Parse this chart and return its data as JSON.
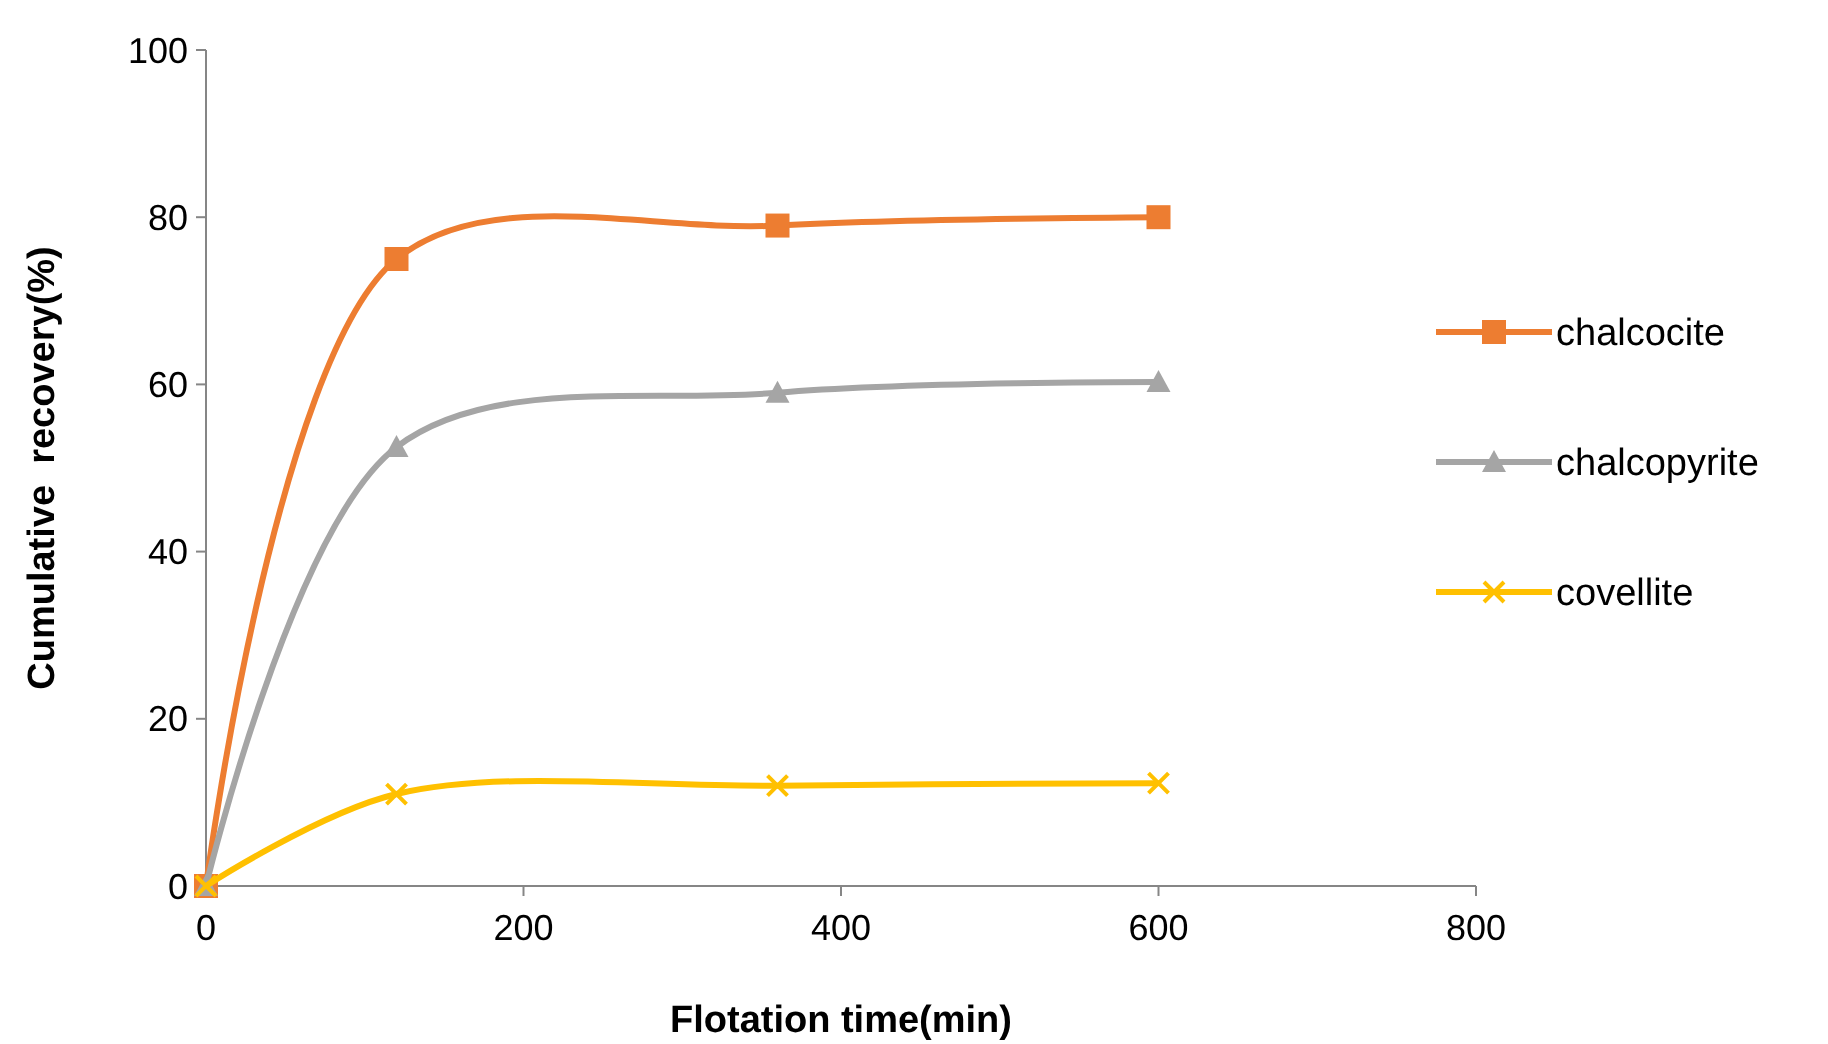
{
  "chart_data": {
    "type": "line",
    "xlabel": "Flotation time(min)",
    "ylabel": "Cumulative  recovery(%)",
    "x": [
      0,
      120,
      360,
      600
    ],
    "series": [
      {
        "name": "chalcocite",
        "color": "#ed7d31",
        "marker": "square",
        "values": [
          0,
          75,
          79,
          80
        ]
      },
      {
        "name": "chalcopyrite",
        "color": "#a5a5a5",
        "marker": "triangle",
        "values": [
          0,
          52.5,
          59,
          60.3
        ]
      },
      {
        "name": "covellite",
        "color": "#ffc000",
        "marker": "cross",
        "values": [
          0,
          11,
          12,
          12.3
        ]
      }
    ],
    "xlim": [
      0,
      800
    ],
    "xticks": [
      0,
      200,
      400,
      600,
      800
    ],
    "ylim": [
      0,
      100
    ],
    "yticks": [
      0,
      20,
      40,
      60,
      80,
      100
    ],
    "grid": false,
    "legend": "right"
  }
}
